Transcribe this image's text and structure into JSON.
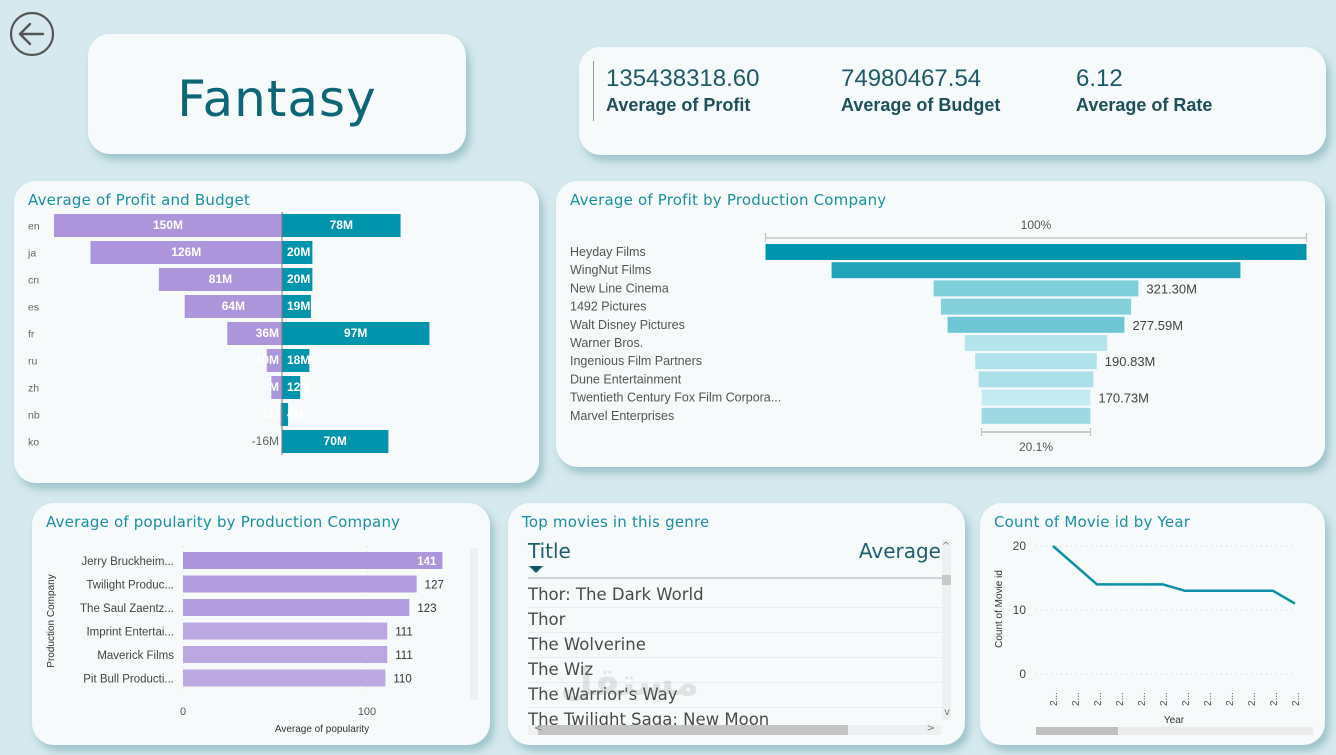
{
  "header": {
    "back_icon": "arrow-left-circle-icon",
    "genre_title": "Fantasy"
  },
  "kpis": [
    {
      "value": "135438318.60",
      "label": "Average of Profit"
    },
    {
      "value": "74980467.54",
      "label": "Average of Budget"
    },
    {
      "value": "6.12",
      "label": "Average of Rate"
    }
  ],
  "table": {
    "title": "Top movies in this genre",
    "columns": [
      "Title",
      "Average"
    ],
    "rows": [
      "Thor: The Dark World",
      "Thor",
      "The Wolverine",
      "The Wiz",
      "The Warrior's Way",
      "The Twilight Saga: New Moon"
    ],
    "scroll_up": "^",
    "scroll_down": "v",
    "scroll_left": "<",
    "scroll_right": ">"
  },
  "colors": {
    "profit": "#ad95db",
    "budget": "#0094ad",
    "title": "#1a8fa3",
    "line": "#0b8fa6"
  },
  "chart_data": [
    {
      "id": "profit_budget",
      "type": "bar",
      "orientation": "horizontal-diverging",
      "title": "Average of Profit and Budget",
      "categories": [
        "en",
        "ja",
        "cn",
        "es",
        "fr",
        "ru",
        "zh",
        "nb",
        "ko"
      ],
      "series": [
        {
          "name": "Average of Profit",
          "values": [
            150,
            126,
            81,
            64,
            36,
            10,
            7,
            1,
            -16
          ],
          "labels": [
            "150M",
            "126M",
            "81M",
            "64M",
            "36M",
            "10M",
            "7M",
            "1M",
            "-16M"
          ]
        },
        {
          "name": "Average of Budget",
          "values": [
            78,
            20,
            20,
            19,
            97,
            18,
            12,
            4,
            70
          ],
          "labels": [
            "78M",
            "20M",
            "20M",
            "19M",
            "97M",
            "18M",
            "12M",
            "4M",
            "70M"
          ]
        }
      ],
      "unit": "M"
    },
    {
      "id": "profit_by_company",
      "type": "bar",
      "orientation": "funnel",
      "title": "Average of Profit by Production Company",
      "categories": [
        "Heyday Films",
        "WingNut Films",
        "New Line Cinema",
        "1492 Pictures",
        "Walt Disney Pictures",
        "Warner Bros.",
        "Ingenious Film Partners",
        "Dune Entertainment",
        "Twentieth Century Fox Film Corpora...",
        "Marvel Enterprises"
      ],
      "values": [
        849.0,
        641.5,
        321.3,
        298.6,
        277.59,
        223.5,
        190.83,
        180.0,
        170.73,
        170.6
      ],
      "data_labels": [
        "",
        "",
        "321.30M",
        "",
        "277.59M",
        "",
        "190.83M",
        "",
        "170.73M",
        ""
      ],
      "top_label": "100%",
      "bottom_label": "20.1%"
    },
    {
      "id": "popularity_by_company",
      "type": "bar",
      "orientation": "horizontal",
      "title": "Average of popularity by Production Company",
      "categories": [
        "Jerry Bruckheim...",
        "Twilight Produc...",
        "The Saul Zaentz...",
        "Imprint Entertai...",
        "Maverick Films",
        "Pit Bull Producti..."
      ],
      "values": [
        141,
        127,
        123,
        111,
        111,
        110
      ],
      "xlabel": "Average of popularity",
      "ylabel": "Production Company",
      "xticks": [
        0,
        100
      ],
      "xlim": [
        0,
        145
      ]
    },
    {
      "id": "movies_by_year",
      "type": "line",
      "title": "Count of Movie id by Year",
      "x": [
        "2...",
        "2...",
        "2...",
        "2...",
        "2...",
        "2...",
        "2...",
        "2...",
        "2...",
        "2...",
        "2...",
        "2..."
      ],
      "values": [
        20,
        17,
        14,
        14,
        14,
        14,
        13,
        13,
        13,
        13,
        13,
        11
      ],
      "xlabel": "Year",
      "ylabel": "Count of Movie id",
      "yticks": [
        0,
        10,
        20
      ],
      "ylim": [
        0,
        20
      ],
      "grid": true
    }
  ],
  "watermark": "مستقل"
}
